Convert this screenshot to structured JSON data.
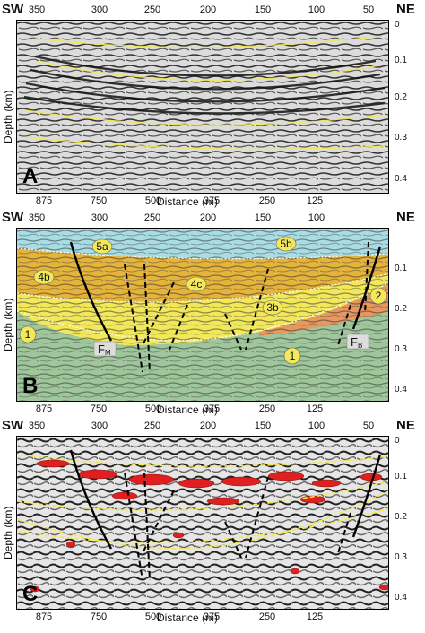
{
  "corners": {
    "left": "SW",
    "right": "NE"
  },
  "top_ticks": [
    "350",
    "300",
    "250",
    "200",
    "150",
    "100",
    "50"
  ],
  "bottom_ticks": [
    "875",
    "750",
    "500",
    "375",
    "250",
    "125"
  ],
  "depth_ticks": [
    "0",
    "0.1",
    "0.2",
    "0.3",
    "0.4"
  ],
  "depth_label": "Depth (km)",
  "distance_label": "Distance (m)",
  "panels": [
    {
      "letter": "A"
    },
    {
      "letter": "B",
      "units": [
        "5a",
        "5b",
        "4b",
        "4c",
        "3b",
        "2",
        "1",
        "1"
      ],
      "faults": {
        "left_main": "F",
        "left_sub": "M",
        "right_main": "F",
        "right_sub": "B"
      }
    },
    {
      "letter": "C"
    }
  ],
  "colors": {
    "seismic_bg": "#d9d9d9",
    "unit5": "#a9dde6",
    "unit4": "#e6b43a",
    "unit3": "#f2e85a",
    "unit2": "#e8975f",
    "unit1": "#9fc79b",
    "horizon": "#f5e94a",
    "amplitude_red": "#e02020"
  }
}
